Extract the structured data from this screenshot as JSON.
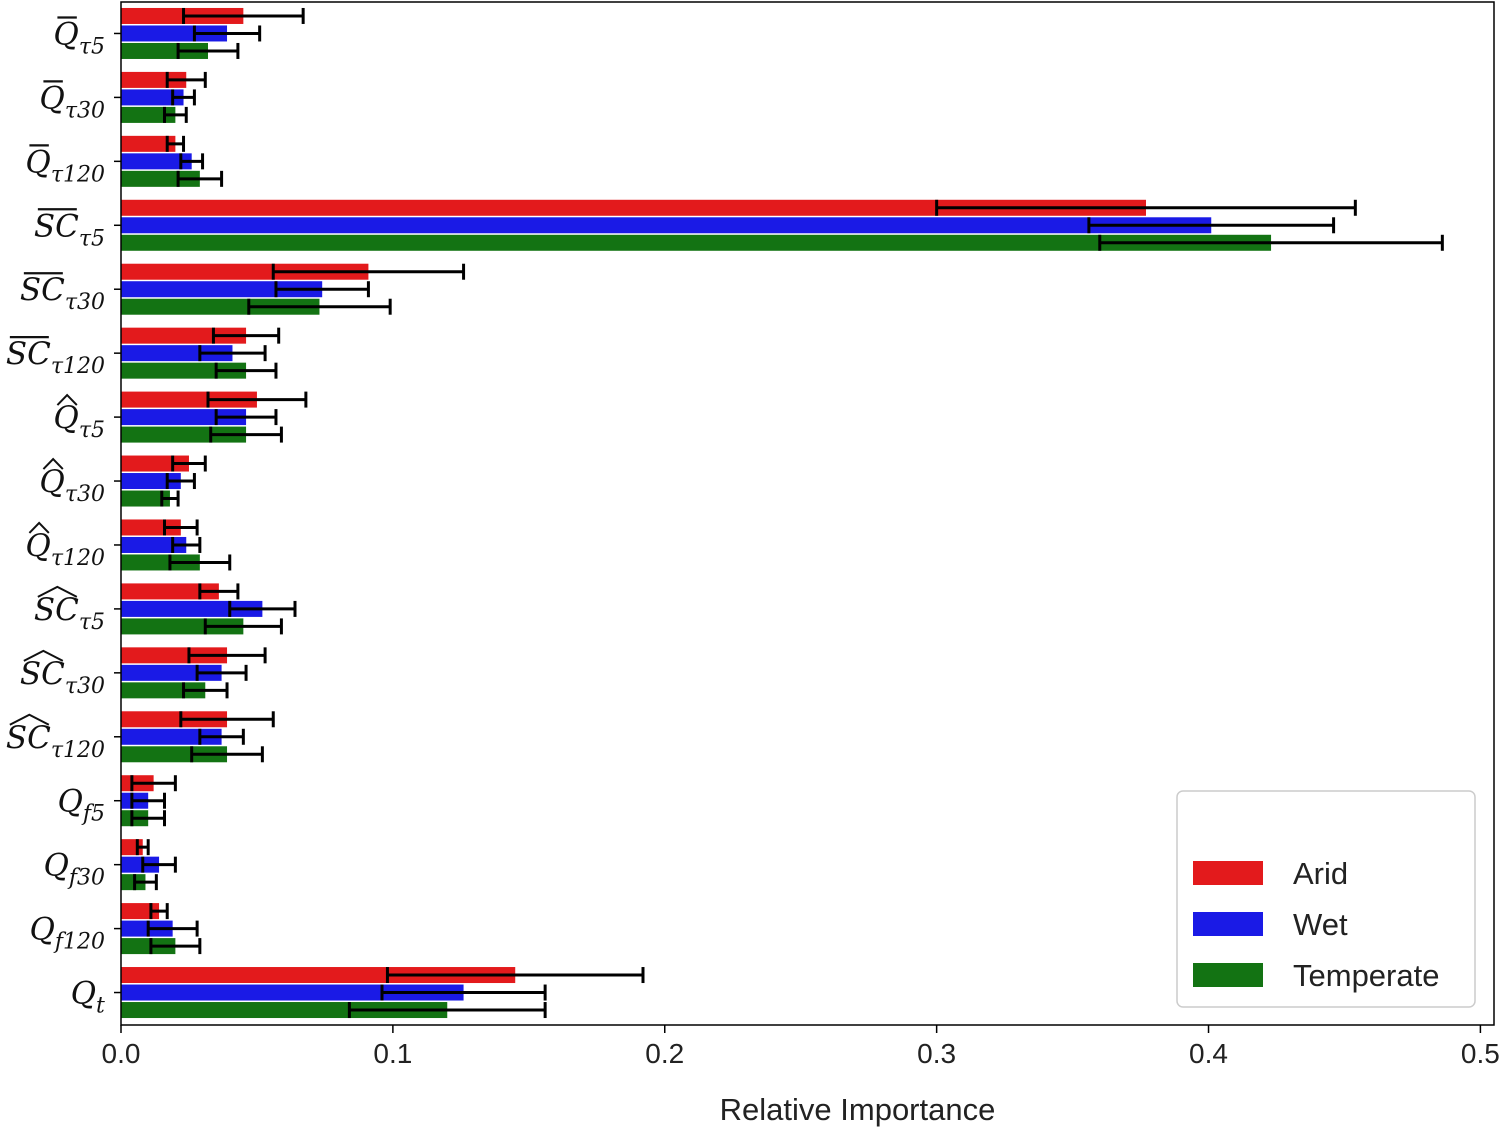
{
  "chart_data": {
    "type": "bar",
    "orientation": "horizontal",
    "xlabel": "Relative Importance",
    "xlim": [
      0,
      0.505
    ],
    "xticks": [
      "0.0",
      "0.1",
      "0.2",
      "0.3",
      "0.4",
      "0.5"
    ],
    "grid": false,
    "legend_position": "bottom-right",
    "categories": [
      {
        "base": "Q",
        "accent": "bar",
        "sub": "τ5"
      },
      {
        "base": "Q",
        "accent": "bar",
        "sub": "τ30"
      },
      {
        "base": "Q",
        "accent": "bar",
        "sub": "τ120"
      },
      {
        "base": "SC",
        "accent": "bar",
        "sub": "τ5"
      },
      {
        "base": "SC",
        "accent": "bar",
        "sub": "τ30"
      },
      {
        "base": "SC",
        "accent": "bar",
        "sub": "τ120"
      },
      {
        "base": "Q",
        "accent": "hat",
        "sub": "τ5"
      },
      {
        "base": "Q",
        "accent": "hat",
        "sub": "τ30"
      },
      {
        "base": "Q",
        "accent": "hat",
        "sub": "τ120"
      },
      {
        "base": "SC",
        "accent": "hat",
        "sub": "τ5"
      },
      {
        "base": "SC",
        "accent": "hat",
        "sub": "τ30"
      },
      {
        "base": "SC",
        "accent": "hat",
        "sub": "τ120"
      },
      {
        "base": "Q",
        "accent": "none",
        "sub": "f5"
      },
      {
        "base": "Q",
        "accent": "none",
        "sub": "f30"
      },
      {
        "base": "Q",
        "accent": "none",
        "sub": "f120"
      },
      {
        "base": "Q",
        "accent": "none",
        "sub": "t"
      }
    ],
    "series": [
      {
        "name": "Arid",
        "color": "#e31a1c",
        "values": [
          0.045,
          0.024,
          0.02,
          0.377,
          0.091,
          0.046,
          0.05,
          0.025,
          0.022,
          0.036,
          0.039,
          0.039,
          0.012,
          0.008,
          0.014,
          0.145
        ],
        "error": [
          0.022,
          0.007,
          0.003,
          0.077,
          0.035,
          0.012,
          0.018,
          0.006,
          0.006,
          0.007,
          0.014,
          0.017,
          0.008,
          0.002,
          0.003,
          0.047
        ]
      },
      {
        "name": "Wet",
        "color": "#1a1ae6",
        "values": [
          0.039,
          0.023,
          0.026,
          0.401,
          0.074,
          0.041,
          0.046,
          0.022,
          0.024,
          0.052,
          0.037,
          0.037,
          0.01,
          0.014,
          0.019,
          0.126
        ],
        "error": [
          0.012,
          0.004,
          0.004,
          0.045,
          0.017,
          0.012,
          0.011,
          0.005,
          0.005,
          0.012,
          0.009,
          0.008,
          0.006,
          0.006,
          0.009,
          0.03
        ]
      },
      {
        "name": "Temperate",
        "color": "#137313",
        "values": [
          0.032,
          0.02,
          0.029,
          0.423,
          0.073,
          0.046,
          0.046,
          0.018,
          0.029,
          0.045,
          0.031,
          0.039,
          0.01,
          0.009,
          0.02,
          0.12
        ],
        "error": [
          0.011,
          0.004,
          0.008,
          0.063,
          0.026,
          0.011,
          0.013,
          0.003,
          0.011,
          0.014,
          0.008,
          0.013,
          0.006,
          0.004,
          0.009,
          0.036
        ]
      }
    ]
  }
}
